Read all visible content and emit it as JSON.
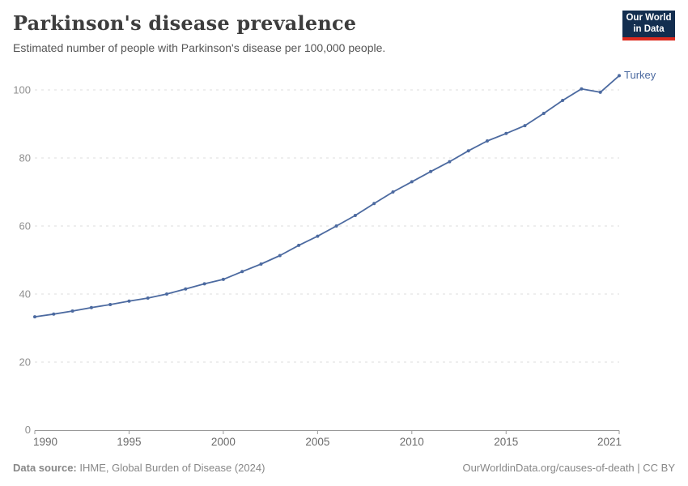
{
  "header": {
    "title": "Parkinson's disease prevalence",
    "subtitle": "Estimated number of people with Parkinson's disease per 100,000 people."
  },
  "logo": {
    "line1": "Our World",
    "line2": "in Data",
    "bg_color": "#132E4F",
    "accent_color": "#DC2A1E"
  },
  "chart_data": {
    "type": "line",
    "title": "Parkinson's disease prevalence",
    "entity_label": "Turkey",
    "xlim": [
      1990,
      2021
    ],
    "ylim": [
      0,
      105
    ],
    "x_ticks": [
      1990,
      1995,
      2000,
      2005,
      2010,
      2015,
      2021
    ],
    "y_ticks": [
      0,
      20,
      40,
      60,
      80,
      100
    ],
    "grid": "horizontal-dashed",
    "legend_position": "end-of-line",
    "x": [
      1990,
      1991,
      1992,
      1993,
      1994,
      1995,
      1996,
      1997,
      1998,
      1999,
      2000,
      2001,
      2002,
      2003,
      2004,
      2005,
      2006,
      2007,
      2008,
      2009,
      2010,
      2011,
      2012,
      2013,
      2014,
      2015,
      2016,
      2017,
      2018,
      2019,
      2020,
      2021
    ],
    "series": [
      {
        "name": "Turkey",
        "color": "#4C6AA0",
        "values": [
          33.3,
          34.1,
          35.0,
          36.0,
          36.9,
          37.9,
          38.8,
          40.0,
          41.5,
          43.0,
          44.3,
          46.6,
          48.8,
          51.3,
          54.3,
          57.0,
          60.0,
          63.1,
          66.6,
          70.0,
          73.0,
          76.0,
          78.9,
          82.1,
          85.0,
          87.2,
          89.5,
          93.1,
          96.9,
          100.3,
          99.3,
          104.2
        ]
      }
    ],
    "axis_colors": {
      "grid": "#dcdcdc",
      "axis_line": "#999999",
      "y_label": "#8f8f8f",
      "x_label": "#6b6b6b"
    }
  },
  "footer": {
    "source_label": "Data source:",
    "source_text": " IHME, Global Burden of Disease (2024)",
    "credit": "OurWorldinData.org/causes-of-death | CC BY"
  }
}
